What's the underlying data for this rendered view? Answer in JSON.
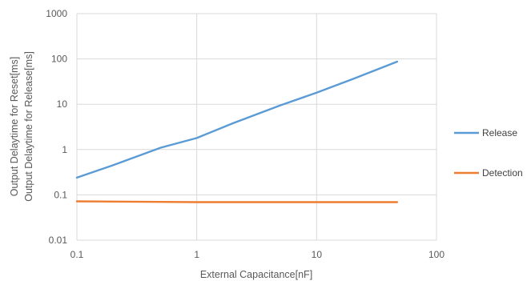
{
  "chart_data": {
    "type": "line",
    "title": "",
    "xlabel": "External Capacitance[nF]",
    "ylabel_lines": [
      "Output Delaytime for Reset[ms]",
      "Output Delaytime for Release[ms]"
    ],
    "x_scale": "log",
    "y_scale": "log",
    "xlim": [
      0.1,
      100
    ],
    "ylim": [
      0.01,
      1000
    ],
    "x_tick_labels": [
      "0.1",
      "1",
      "10",
      "100"
    ],
    "y_tick_labels": [
      "0.01",
      "0.1",
      "1",
      "10",
      "100",
      "1000"
    ],
    "grid": true,
    "legend_position": "right",
    "series": [
      {
        "name": "Release",
        "color": "#5B9BD5",
        "x": [
          0.1,
          0.2,
          0.5,
          1,
          2,
          5,
          10,
          20,
          47
        ],
        "y": [
          0.24,
          0.45,
          1.1,
          1.8,
          3.8,
          9.5,
          18,
          36,
          87
        ]
      },
      {
        "name": "Detection",
        "color": "#ED7D31",
        "x": [
          0.1,
          0.2,
          0.5,
          1,
          2,
          5,
          10,
          20,
          47
        ],
        "y": [
          0.072,
          0.071,
          0.07,
          0.069,
          0.069,
          0.069,
          0.069,
          0.069,
          0.069
        ]
      }
    ]
  }
}
